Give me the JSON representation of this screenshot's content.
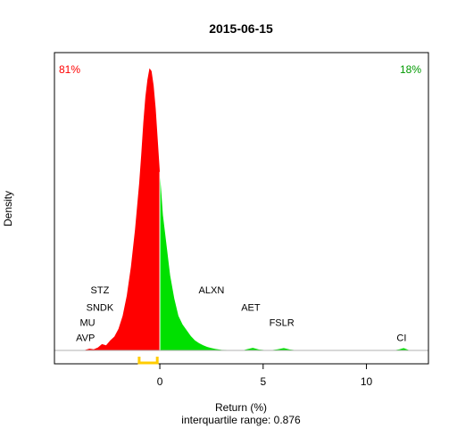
{
  "chart_data": {
    "type": "area",
    "title": "2015-06-15",
    "xlabel": "Return (%)",
    "ylabel": "Density",
    "subtitle": "interquartile range: 0.876",
    "xlim": [
      -5.1,
      13.0
    ],
    "ylim": [
      0,
      1.0
    ],
    "x_ticks": [
      0,
      5,
      10
    ],
    "negative_share": "81%",
    "positive_share": "18%",
    "colors": {
      "negative": "#ff0000",
      "positive": "#00e000",
      "iqr": "#ffcc00",
      "negative_label": "#ff0000",
      "positive_label": "#009900"
    },
    "density": {
      "x": [
        -3.7,
        -3.4,
        -3.2,
        -3.0,
        -2.8,
        -2.6,
        -2.4,
        -2.2,
        -2.0,
        -1.8,
        -1.6,
        -1.4,
        -1.2,
        -1.0,
        -0.9,
        -0.8,
        -0.7,
        -0.6,
        -0.5,
        -0.4,
        -0.3,
        -0.2,
        -0.1,
        0.0,
        0.05,
        0.15,
        0.3,
        0.5,
        0.7,
        0.9,
        1.1,
        1.3,
        1.5,
        1.7,
        1.9,
        2.1,
        2.3,
        2.5,
        2.7,
        3.0,
        3.5,
        4.0,
        4.2,
        4.5,
        4.8,
        5.3,
        5.7,
        6.0,
        6.3,
        6.7,
        11.3,
        11.6,
        11.8,
        12.1
      ],
      "y": [
        0.0,
        0.006,
        0.004,
        0.01,
        0.022,
        0.018,
        0.035,
        0.048,
        0.075,
        0.12,
        0.19,
        0.29,
        0.42,
        0.58,
        0.68,
        0.79,
        0.88,
        0.94,
        0.98,
        0.97,
        0.92,
        0.84,
        0.73,
        0.62,
        0.57,
        0.47,
        0.38,
        0.26,
        0.18,
        0.12,
        0.09,
        0.07,
        0.05,
        0.035,
        0.025,
        0.018,
        0.012,
        0.008,
        0.005,
        0.002,
        0.001,
        0.0,
        0.004,
        0.009,
        0.003,
        0.0,
        0.004,
        0.008,
        0.003,
        0.0,
        0.0,
        0.004,
        0.008,
        0.0
      ]
    },
    "iqr": [
      -1.0,
      -0.124
    ],
    "annotations": [
      {
        "label": "STZ",
        "x": -2.9,
        "y": 0.21
      },
      {
        "label": "SNDK",
        "x": -2.9,
        "y": 0.15
      },
      {
        "label": "MU",
        "x": -3.5,
        "y": 0.098
      },
      {
        "label": "AVP",
        "x": -3.6,
        "y": 0.045
      },
      {
        "label": "ALXN",
        "x": 2.5,
        "y": 0.21
      },
      {
        "label": "AET",
        "x": 4.4,
        "y": 0.15
      },
      {
        "label": "FSLR",
        "x": 5.9,
        "y": 0.098
      },
      {
        "label": "CI",
        "x": 11.7,
        "y": 0.045
      }
    ]
  }
}
